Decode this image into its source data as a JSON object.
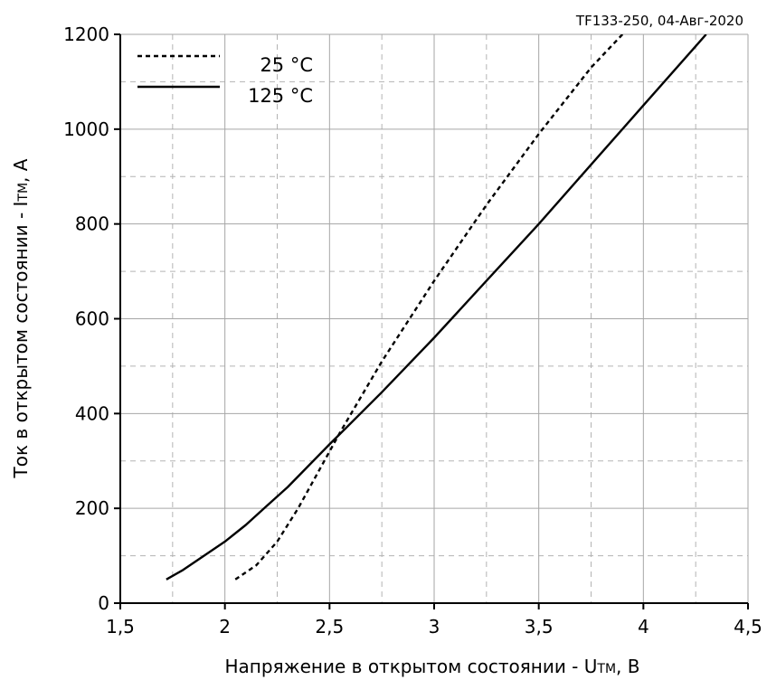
{
  "chart_data": {
    "type": "line",
    "title": "",
    "annotation": "TF133-250, 04-Авг-2020",
    "xlabel": "Напряжение в открытом состоянии - U",
    "xlabel_sub": "TM",
    "xlabel_unit": ", В",
    "ylabel": "Ток в открытом состоянии - I",
    "ylabel_sub": "TM",
    "ylabel_unit": ", А",
    "xlim": [
      1.5,
      4.5
    ],
    "ylim": [
      0,
      1200
    ],
    "x_ticks": [
      1.5,
      2,
      2.5,
      3,
      3.5,
      4,
      4.5
    ],
    "x_tick_labels": [
      "1,5",
      "2",
      "2,5",
      "3",
      "3,5",
      "4",
      "4,5"
    ],
    "y_ticks": [
      0,
      200,
      400,
      600,
      800,
      1000,
      1200
    ],
    "y_tick_labels": [
      "0",
      "200",
      "400",
      "600",
      "800",
      "1000",
      "1200"
    ],
    "grid": "major solid, minor dashed",
    "legend_position": "top-left",
    "series": [
      {
        "name": "25 °C",
        "style": "dotted",
        "x": [
          2.05,
          2.15,
          2.25,
          2.35,
          2.45,
          2.55,
          2.75,
          3.0,
          3.25,
          3.5,
          3.75,
          3.9
        ],
        "y": [
          50,
          80,
          130,
          200,
          280,
          360,
          510,
          680,
          840,
          990,
          1130,
          1200
        ]
      },
      {
        "name": "125 °C",
        "style": "solid",
        "x": [
          1.72,
          1.8,
          1.9,
          2.0,
          2.1,
          2.2,
          2.3,
          2.4,
          2.5,
          2.75,
          3.0,
          3.25,
          3.5,
          3.75,
          4.0,
          4.25,
          4.3
        ],
        "y": [
          50,
          70,
          100,
          130,
          165,
          205,
          245,
          290,
          335,
          445,
          560,
          680,
          800,
          925,
          1050,
          1175,
          1200
        ]
      }
    ]
  }
}
